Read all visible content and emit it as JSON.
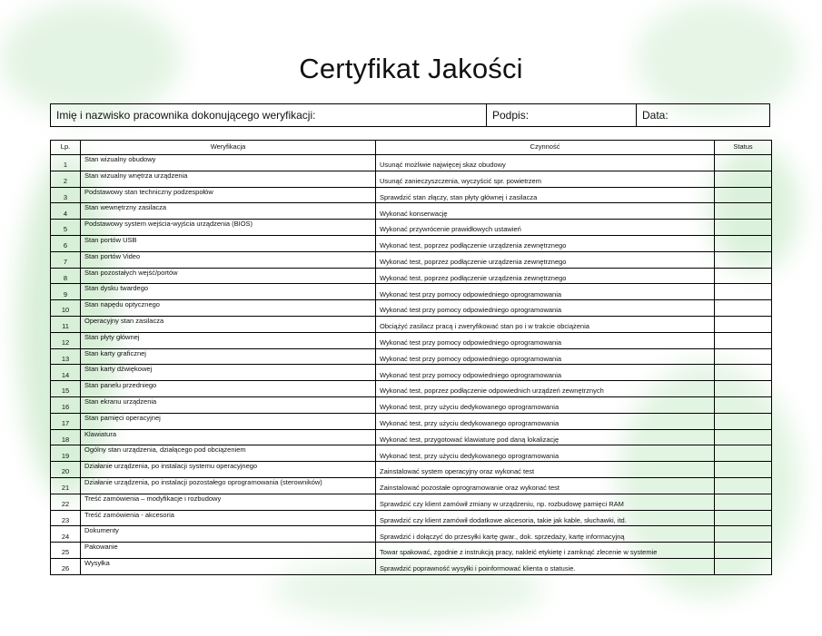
{
  "title": "Certyfikat Jakości",
  "header_fields": {
    "employee": "Imię i nazwisko pracownika dokonującego weryfikacji:",
    "signature": "Podpis:",
    "date": "Data:"
  },
  "table": {
    "columns": [
      "Lp.",
      "Weryfikacja",
      "Czynność",
      "Status"
    ],
    "rows": [
      {
        "lp": "1",
        "ver": "Stan wizualny obudowy",
        "cz": "Usunąć możliwie najwięcej skaz obudowy",
        "status": ""
      },
      {
        "lp": "2",
        "ver": "Stan wizualny wnętrza urządzenia",
        "cz": "Usunąć zanieczyszczenia, wyczyścić spr. powietrzem",
        "status": ""
      },
      {
        "lp": "3",
        "ver": "Podstawowy stan techniczny podzespołów",
        "cz": "Sprawdzić stan złączy, stan płyty głównej i zasilacza",
        "status": ""
      },
      {
        "lp": "4",
        "ver": "Stan wewnętrzny zasilacza",
        "cz": "Wykonać konserwację",
        "status": ""
      },
      {
        "lp": "5",
        "ver": "Podstawowy system wejścia-wyjścia urządzenia (BIOS)",
        "cz": "Wykonać przywrócenie prawidłowych ustawień",
        "status": ""
      },
      {
        "lp": "6",
        "ver": "Stan portów USB",
        "cz": "Wykonać test, poprzez podłączenie urządzenia zewnętrznego",
        "status": ""
      },
      {
        "lp": "7",
        "ver": "Stan portów Video",
        "cz": "Wykonać test, poprzez podłączenie urządzenia zewnętrznego",
        "status": ""
      },
      {
        "lp": "8",
        "ver": "Stan pozostałych wejść/portów",
        "cz": "Wykonać test, poprzez podłączenie urządzenia zewnętrznego",
        "status": ""
      },
      {
        "lp": "9",
        "ver": "Stan dysku twardego",
        "cz": "Wykonać test przy pomocy odpowiedniego oprogramowania",
        "status": ""
      },
      {
        "lp": "10",
        "ver": "Stan napędu optycznego",
        "cz": "Wykonać test przy pomocy odpowiedniego oprogramowania",
        "status": ""
      },
      {
        "lp": "11",
        "ver": "Operacyjny stan zasilacza",
        "cz": "Obciążyć zasilacz pracą i zweryfikować stan po i w trakcie obciążenia",
        "status": ""
      },
      {
        "lp": "12",
        "ver": "Stan płyty głównej",
        "cz": "Wykonać test przy pomocy odpowiedniego oprogramowania",
        "status": ""
      },
      {
        "lp": "13",
        "ver": "Stan karty graficznej",
        "cz": "Wykonać test przy pomocy odpowiedniego oprogramowania",
        "status": ""
      },
      {
        "lp": "14",
        "ver": "Stan karty dźwiękowej",
        "cz": "Wykonać test przy pomocy odpowiedniego oprogramowania",
        "status": ""
      },
      {
        "lp": "15",
        "ver": "Stan panelu przedniego",
        "cz": "Wykonać test, poprzez podłączenie odpowiednich urządzeń zewnętrznych",
        "status": ""
      },
      {
        "lp": "16",
        "ver": "Stan ekranu urządzenia",
        "cz": "Wykonać test, przy użyciu dedykowanego oprogramowania",
        "status": ""
      },
      {
        "lp": "17",
        "ver": "Stan pamięci operacyjnej",
        "cz": "Wykonać test, przy użyciu dedykowanego oprogramowania",
        "status": ""
      },
      {
        "lp": "18",
        "ver": "Klawiatura",
        "cz": "Wykonać test, przygotować klawiaturę pod daną lokalizację",
        "status": ""
      },
      {
        "lp": "19",
        "ver": "Ogólny stan urządzenia, działącego pod obciążeniem",
        "cz": "Wykonać test, przy użyciu dedykowanego oprogramowania",
        "status": ""
      },
      {
        "lp": "20",
        "ver": "Działanie urządzenia, po instalacji systemu operacyjnego",
        "cz": "Zainstalować system operacyjny oraz wykonać test",
        "status": ""
      },
      {
        "lp": "21",
        "ver": "Działanie urządzenia, po instalacji pozostałego oprogramowania (sterowników)",
        "cz": "Zainstalować pozostałe oprogramowanie oraz wykonać test",
        "status": ""
      },
      {
        "lp": "22",
        "ver": "Treść zamówienia – modyfikacje i rozbudowy",
        "cz": "Sprawdzić czy klient zamówił zmiany w urządzeniu, np. rozbudowę pamięci RAM",
        "status": ""
      },
      {
        "lp": "23",
        "ver": "Treść zamówienia - akcesoria",
        "cz": "Sprawdzić czy klient zamówił dodatkowe akcesoria, takie jak kable, słuchawki, itd.",
        "status": ""
      },
      {
        "lp": "24",
        "ver": "Dokumenty",
        "cz": "Sprawdzić i dołączyć do przesyłki kartę gwar., dok. sprzedaży, kartę informacyjną",
        "status": ""
      },
      {
        "lp": "25",
        "ver": "Pakowanie",
        "cz": "Towar spakować, zgodnie z instrukcją pracy, nakleić etykietę i zamknąć zlecenie w systemie",
        "status": ""
      },
      {
        "lp": "26",
        "ver": "Wysyłka",
        "cz": "Sprawdzić poprawność wysyłki i poinformować klienta o statusie.",
        "status": ""
      }
    ]
  },
  "colors": {
    "watermark": "#d8f0d8",
    "border": "#000000"
  }
}
